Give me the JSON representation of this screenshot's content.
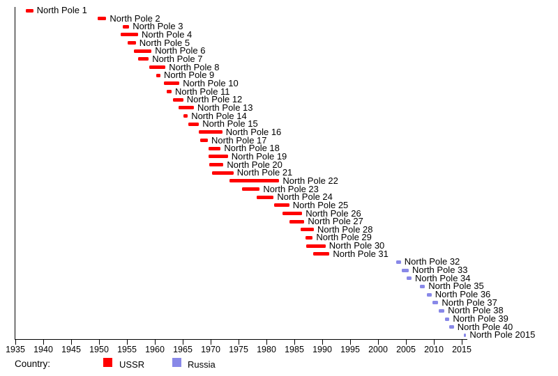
{
  "chart_data": {
    "type": "bar",
    "variant": "horizontal-timeline-gantt",
    "title": "",
    "xlabel": "",
    "ylabel": "",
    "xlim": [
      1935,
      2016.5
    ],
    "x_ticks": [
      1935,
      1940,
      1945,
      1950,
      1955,
      1960,
      1965,
      1970,
      1975,
      1980,
      1985,
      1990,
      1995,
      2000,
      2005,
      2010,
      2015
    ],
    "grid": false,
    "legend_position": "bottom",
    "colors": {
      "USSR": "#ff0000",
      "Russia": "#8888e8"
    },
    "legend": {
      "title": "Country:",
      "items": [
        {
          "label": "USSR",
          "color": "#ff0000"
        },
        {
          "label": "Russia",
          "color": "#8888e8"
        }
      ]
    },
    "stations": [
      {
        "label": "North Pole 1",
        "country": "USSR",
        "start": 1936.9,
        "end": 1938.2
      },
      {
        "label": "North Pole 2",
        "country": "USSR",
        "start": 1949.8,
        "end": 1951.3
      },
      {
        "label": "North Pole 3",
        "country": "USSR",
        "start": 1954.3,
        "end": 1955.4
      },
      {
        "label": "North Pole 4",
        "country": "USSR",
        "start": 1953.9,
        "end": 1957.0
      },
      {
        "label": "North Pole 5",
        "country": "USSR",
        "start": 1955.1,
        "end": 1956.6
      },
      {
        "label": "North Pole 6",
        "country": "USSR",
        "start": 1956.3,
        "end": 1959.4
      },
      {
        "label": "North Pole 7",
        "country": "USSR",
        "start": 1957.0,
        "end": 1958.9
      },
      {
        "label": "North Pole 8",
        "country": "USSR",
        "start": 1959.0,
        "end": 1961.9
      },
      {
        "label": "North Pole 9",
        "country": "USSR",
        "start": 1960.3,
        "end": 1961.0
      },
      {
        "label": "North Pole 10",
        "country": "USSR",
        "start": 1961.6,
        "end": 1964.4
      },
      {
        "label": "North Pole 11",
        "country": "USSR",
        "start": 1962.1,
        "end": 1963.0
      },
      {
        "label": "North Pole 12",
        "country": "USSR",
        "start": 1963.3,
        "end": 1965.1
      },
      {
        "label": "North Pole 13",
        "country": "USSR",
        "start": 1964.3,
        "end": 1967.0
      },
      {
        "label": "North Pole 14",
        "country": "USSR",
        "start": 1965.1,
        "end": 1965.9
      },
      {
        "label": "North Pole 15",
        "country": "USSR",
        "start": 1966.0,
        "end": 1967.9
      },
      {
        "label": "North Pole 16",
        "country": "USSR",
        "start": 1967.9,
        "end": 1972.1
      },
      {
        "label": "North Pole 17",
        "country": "USSR",
        "start": 1968.1,
        "end": 1969.5
      },
      {
        "label": "North Pole 18",
        "country": "USSR",
        "start": 1969.6,
        "end": 1971.8
      },
      {
        "label": "North Pole 19",
        "country": "USSR",
        "start": 1969.6,
        "end": 1973.1
      },
      {
        "label": "North Pole 20",
        "country": "USSR",
        "start": 1969.8,
        "end": 1972.3
      },
      {
        "label": "North Pole 21",
        "country": "USSR",
        "start": 1970.3,
        "end": 1974.1
      },
      {
        "label": "North Pole 22",
        "country": "USSR",
        "start": 1973.4,
        "end": 1982.3
      },
      {
        "label": "North Pole 23",
        "country": "USSR",
        "start": 1975.6,
        "end": 1978.8
      },
      {
        "label": "North Pole 24",
        "country": "USSR",
        "start": 1978.3,
        "end": 1981.3
      },
      {
        "label": "North Pole 25",
        "country": "USSR",
        "start": 1981.4,
        "end": 1984.1
      },
      {
        "label": "North Pole 26",
        "country": "USSR",
        "start": 1982.9,
        "end": 1986.4
      },
      {
        "label": "North Pole 27",
        "country": "USSR",
        "start": 1984.1,
        "end": 1986.8
      },
      {
        "label": "North Pole 28",
        "country": "USSR",
        "start": 1986.1,
        "end": 1988.5
      },
      {
        "label": "North Pole 29",
        "country": "USSR",
        "start": 1987.0,
        "end": 1988.3
      },
      {
        "label": "North Pole 30",
        "country": "USSR",
        "start": 1987.1,
        "end": 1990.6
      },
      {
        "label": "North Pole 31",
        "country": "USSR",
        "start": 1988.4,
        "end": 1991.3
      },
      {
        "label": "North Pole 32",
        "country": "Russia",
        "start": 2003.3,
        "end": 2004.1
      },
      {
        "label": "North Pole 33",
        "country": "Russia",
        "start": 2004.3,
        "end": 2005.5
      },
      {
        "label": "North Pole 34",
        "country": "Russia",
        "start": 2005.1,
        "end": 2006.0
      },
      {
        "label": "North Pole 35",
        "country": "Russia",
        "start": 2007.5,
        "end": 2008.4
      },
      {
        "label": "North Pole 36",
        "country": "Russia",
        "start": 2008.8,
        "end": 2009.6
      },
      {
        "label": "North Pole 37",
        "country": "Russia",
        "start": 2009.8,
        "end": 2010.8
      },
      {
        "label": "North Pole 38",
        "country": "Russia",
        "start": 2010.9,
        "end": 2011.9
      },
      {
        "label": "North Pole 39",
        "country": "Russia",
        "start": 2012.0,
        "end": 2012.8
      },
      {
        "label": "North Pole 40",
        "country": "Russia",
        "start": 2012.8,
        "end": 2013.6
      },
      {
        "label": "North Pole 2015",
        "country": "Russia",
        "start": 2015.4,
        "end": 2015.8
      }
    ]
  }
}
